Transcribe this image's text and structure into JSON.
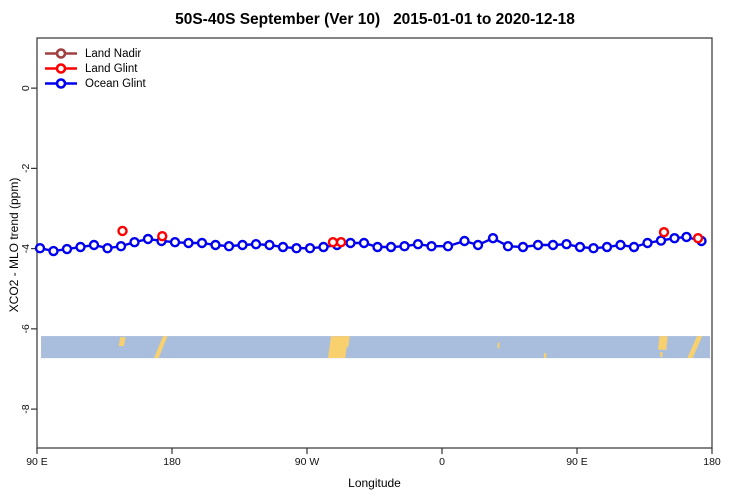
{
  "title": "50S-40S September (Ver 10)   2015-01-01 to 2020-12-18",
  "legend": {
    "items": [
      {
        "label": "Land Nadir",
        "color": "#a04040"
      },
      {
        "label": "Land Glint",
        "color": "#ff0000"
      },
      {
        "label": "Ocean Glint",
        "color": "#0000ee"
      }
    ]
  },
  "chart_data": {
    "type": "line",
    "title": "50S-40S September (Ver 10)   2015-01-01 to 2020-12-18",
    "xlabel": "Longitude",
    "ylabel": "XCO2 - MLO trend (ppm)",
    "xlim": [
      90,
      540
    ],
    "ylim": [
      -8.97,
      1.25
    ],
    "grid": false,
    "legend_position": "top-left",
    "xticks": [
      [
        90,
        "90 E"
      ],
      [
        180,
        "180"
      ],
      [
        270,
        "90 W"
      ],
      [
        360,
        "0"
      ],
      [
        450,
        "90 E"
      ],
      [
        540,
        "180"
      ]
    ],
    "yticks": [
      [
        0,
        "0"
      ],
      [
        -2,
        "-2"
      ],
      [
        -4,
        "-4"
      ],
      [
        -6,
        "-6"
      ],
      [
        -8,
        "-8"
      ]
    ],
    "x_axis_note": "longitude axis wraps eastward from 90E around the globe to 180",
    "series": [
      {
        "name": "Ocean Glint",
        "color": "#0000ee",
        "draw_line": true,
        "marker": "open-circle",
        "points": [
          [
            92,
            -3.99
          ],
          [
            101,
            -4.06
          ],
          [
            110,
            -4.01
          ],
          [
            119,
            -3.96
          ],
          [
            128,
            -3.91
          ],
          [
            137,
            -3.99
          ],
          [
            146,
            -3.94
          ],
          [
            155,
            -3.84
          ],
          [
            164,
            -3.76
          ],
          [
            173,
            -3.81
          ],
          [
            182,
            -3.84
          ],
          [
            191,
            -3.86
          ],
          [
            200,
            -3.86
          ],
          [
            209,
            -3.91
          ],
          [
            218,
            -3.94
          ],
          [
            227,
            -3.91
          ],
          [
            236,
            -3.89
          ],
          [
            245,
            -3.91
          ],
          [
            254,
            -3.96
          ],
          [
            263,
            -3.99
          ],
          [
            272,
            -3.99
          ],
          [
            281,
            -3.96
          ],
          [
            290,
            -3.91
          ],
          [
            299,
            -3.86
          ],
          [
            308,
            -3.86
          ],
          [
            317,
            -3.96
          ],
          [
            326,
            -3.96
          ],
          [
            335,
            -3.94
          ],
          [
            344,
            -3.89
          ],
          [
            353,
            -3.94
          ],
          [
            364,
            -3.94
          ],
          [
            375,
            -3.81
          ],
          [
            384,
            -3.91
          ],
          [
            394,
            -3.74
          ],
          [
            404,
            -3.94
          ],
          [
            414,
            -3.96
          ],
          [
            424,
            -3.91
          ],
          [
            434,
            -3.91
          ],
          [
            443,
            -3.89
          ],
          [
            452,
            -3.96
          ],
          [
            461,
            -3.99
          ],
          [
            470,
            -3.96
          ],
          [
            479,
            -3.91
          ],
          [
            488,
            -3.96
          ],
          [
            497,
            -3.86
          ],
          [
            506,
            -3.8
          ],
          [
            515,
            -3.74
          ],
          [
            523,
            -3.71
          ],
          [
            533,
            -3.81
          ]
        ]
      },
      {
        "name": "Land Glint",
        "color": "#ff0000",
        "draw_line": false,
        "marker": "open-circle",
        "points": [
          [
            147,
            -3.56
          ],
          [
            173.5,
            -3.69
          ],
          [
            287.3,
            -3.84
          ],
          [
            292.7,
            -3.84
          ],
          [
            508,
            -3.59
          ],
          [
            530.7,
            -3.74
          ]
        ]
      },
      {
        "name": "Land Nadir",
        "color": "#a04040",
        "draw_line": false,
        "marker": "open-circle",
        "points": []
      }
    ],
    "map_strip": {
      "description": "latitude-band world map strip, ocean with land patches",
      "ocean_color": "#a9bedd",
      "land_color": "#f9d06e",
      "x_range": [
        92.7,
        538.7
      ],
      "y_range": [
        -6.18,
        -6.73
      ],
      "land_patches": [
        {
          "x0": 144.5,
          "x1": 148.0,
          "y0": 0.05,
          "y1": 0.45,
          "skew": 1
        },
        {
          "x0": 168.0,
          "x1": 171.0,
          "y0": 0.0,
          "y1": 1.0,
          "skew": 6
        },
        {
          "x0": 284.0,
          "x1": 295.5,
          "y0": 0.0,
          "y1": 1.0,
          "skew": 2
        },
        {
          "x0": 294.0,
          "x1": 297.5,
          "y0": 0.0,
          "y1": 0.5,
          "skew": 1
        },
        {
          "x0": 397.0,
          "x1": 398.3,
          "y0": 0.3,
          "y1": 0.55,
          "skew": 0
        },
        {
          "x0": 428.0,
          "x1": 429.5,
          "y0": 0.78,
          "y1": 1.0,
          "skew": 0
        },
        {
          "x0": 504.0,
          "x1": 509.5,
          "y0": 0.0,
          "y1": 0.62,
          "skew": 1
        },
        {
          "x0": 505.5,
          "x1": 507.0,
          "y0": 0.72,
          "y1": 0.95,
          "skew": 0
        },
        {
          "x0": 523.5,
          "x1": 527.0,
          "y0": 0.0,
          "y1": 1.0,
          "skew": 6.5
        }
      ]
    }
  }
}
